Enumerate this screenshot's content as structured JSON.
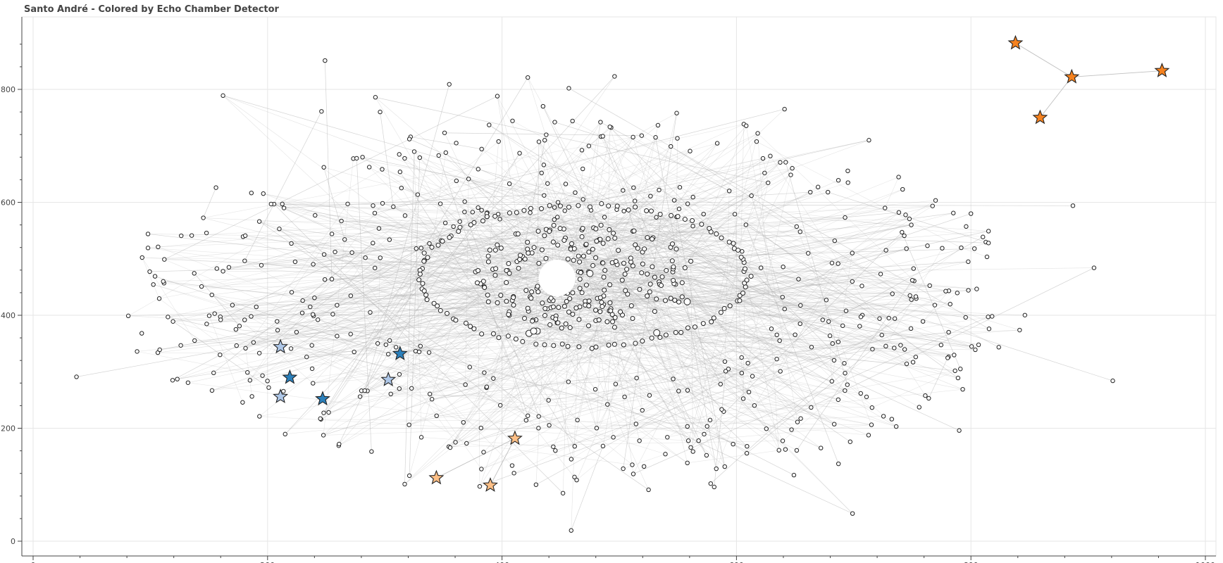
{
  "chart_data": {
    "type": "scatter",
    "title": "Santo André - Colored by Echo Chamber Detector",
    "xlabel": "",
    "ylabel": "",
    "xlim": [
      -10,
      1010
    ],
    "ylim": [
      -20,
      925
    ],
    "x_ticks": [
      0,
      200,
      400,
      600,
      800,
      1000
    ],
    "y_ticks": [
      0,
      200,
      400,
      600,
      800
    ],
    "grid": true,
    "legend": "none",
    "colors": {
      "node_fill": "#ffffff",
      "node_stroke": "#222222",
      "edge": "#b0b0b0",
      "grid": "#e6e6e6",
      "axis": "#444444",
      "star_dark_orange": "#f5821f",
      "star_light_orange": "#fdbf86",
      "star_dark_blue": "#2b7fba",
      "star_light_blue": "#aec7e8"
    },
    "highlighted_nodes": [
      {
        "x": 838,
        "y": 882,
        "color": "#f5821f",
        "shape": "star"
      },
      {
        "x": 886,
        "y": 822,
        "color": "#f5821f",
        "shape": "star"
      },
      {
        "x": 963,
        "y": 833,
        "color": "#f5821f",
        "shape": "star"
      },
      {
        "x": 859,
        "y": 750,
        "color": "#f5821f",
        "shape": "star"
      },
      {
        "x": 411,
        "y": 182,
        "color": "#fdbf86",
        "shape": "star"
      },
      {
        "x": 344,
        "y": 112,
        "color": "#fdbf86",
        "shape": "star"
      },
      {
        "x": 390,
        "y": 99,
        "color": "#fdbf86",
        "shape": "star"
      },
      {
        "x": 211,
        "y": 344,
        "color": "#aec7e8",
        "shape": "star"
      },
      {
        "x": 303,
        "y": 286,
        "color": "#aec7e8",
        "shape": "star"
      },
      {
        "x": 211,
        "y": 256,
        "color": "#aec7e8",
        "shape": "star"
      },
      {
        "x": 219,
        "y": 290,
        "color": "#2b7fba",
        "shape": "star"
      },
      {
        "x": 247,
        "y": 252,
        "color": "#2b7fba",
        "shape": "star"
      },
      {
        "x": 313,
        "y": 332,
        "color": "#2b7fba",
        "shape": "star"
      }
    ],
    "highlighted_edges": [
      [
        838,
        882,
        886,
        822
      ],
      [
        886,
        822,
        963,
        833
      ],
      [
        886,
        822,
        859,
        750
      ],
      [
        411,
        182,
        344,
        112
      ],
      [
        411,
        182,
        390,
        99
      ]
    ],
    "outer_nodes": [
      [
        37,
        291
      ],
      [
        98,
        544
      ],
      [
        104,
        469
      ],
      [
        108,
        339
      ],
      [
        111,
        460
      ],
      [
        115,
        397
      ],
      [
        119,
        285
      ],
      [
        123,
        287
      ],
      [
        154,
        298
      ],
      [
        156,
        626
      ],
      [
        160,
        392
      ],
      [
        162,
        789
      ],
      [
        162,
        478
      ],
      [
        167,
        485
      ],
      [
        170,
        418
      ],
      [
        173,
        375
      ],
      [
        176,
        381
      ],
      [
        181,
        541
      ],
      [
        186,
        398
      ],
      [
        188,
        352
      ],
      [
        193,
        333
      ],
      [
        201,
        272
      ],
      [
        203,
        597
      ],
      [
        210,
        553
      ],
      [
        214,
        590
      ],
      [
        220,
        341
      ],
      [
        245,
        217
      ],
      [
        246,
        761
      ],
      [
        248,
        662
      ],
      [
        249,
        851
      ],
      [
        261,
        172
      ],
      [
        276,
        678
      ],
      [
        281,
        680
      ],
      [
        292,
        786
      ],
      [
        296,
        760
      ],
      [
        321,
        116
      ],
      [
        322,
        716
      ],
      [
        317,
        101
      ],
      [
        321,
        712
      ],
      [
        346,
        683
      ],
      [
        351,
        723
      ],
      [
        355,
        809
      ],
      [
        364,
        566
      ],
      [
        368,
        583
      ],
      [
        381,
        97
      ],
      [
        389,
        737
      ],
      [
        396,
        788
      ],
      [
        415,
        687
      ],
      [
        422,
        821
      ],
      [
        429,
        100
      ],
      [
        435,
        770
      ],
      [
        445,
        742
      ],
      [
        452,
        85
      ],
      [
        457,
        802
      ],
      [
        459,
        19
      ],
      [
        462,
        168
      ],
      [
        484,
        742
      ],
      [
        486,
        717
      ],
      [
        496,
        823
      ],
      [
        512,
        119
      ],
      [
        525,
        91
      ],
      [
        531,
        715
      ],
      [
        544,
        699
      ],
      [
        549,
        758
      ],
      [
        561,
        166
      ],
      [
        578,
        102
      ],
      [
        581,
        96
      ],
      [
        590,
        132
      ],
      [
        609,
        168
      ],
      [
        624,
        652
      ],
      [
        641,
        765
      ],
      [
        642,
        671
      ],
      [
        649,
        117
      ],
      [
        663,
        618
      ],
      [
        672,
        165
      ],
      [
        678,
        618
      ],
      [
        687,
        137
      ],
      [
        697,
        176
      ],
      [
        699,
        49
      ],
      [
        713,
        710
      ],
      [
        723,
        473
      ],
      [
        745,
        518
      ],
      [
        764,
        253
      ],
      [
        781,
        370
      ],
      [
        785,
        581
      ],
      [
        789,
        289
      ],
      [
        790,
        196
      ],
      [
        791,
        305
      ],
      [
        800,
        580
      ],
      [
        803,
        518
      ],
      [
        815,
        528
      ],
      [
        815,
        549
      ],
      [
        887,
        594
      ],
      [
        905,
        484
      ],
      [
        921,
        284
      ],
      [
        730,
        395
      ],
      [
        740,
        347
      ],
      [
        748,
        435
      ],
      [
        750,
        462
      ],
      [
        733,
        438
      ],
      [
        716,
        340
      ],
      [
        724,
        365
      ],
      [
        707,
        452
      ],
      [
        692,
        315
      ]
    ],
    "hubs": [
      [
        430,
        372
      ],
      [
        532,
        369
      ],
      [
        558,
        424
      ],
      [
        475,
        474
      ],
      [
        423,
        368
      ],
      [
        427,
        372
      ]
    ]
  }
}
